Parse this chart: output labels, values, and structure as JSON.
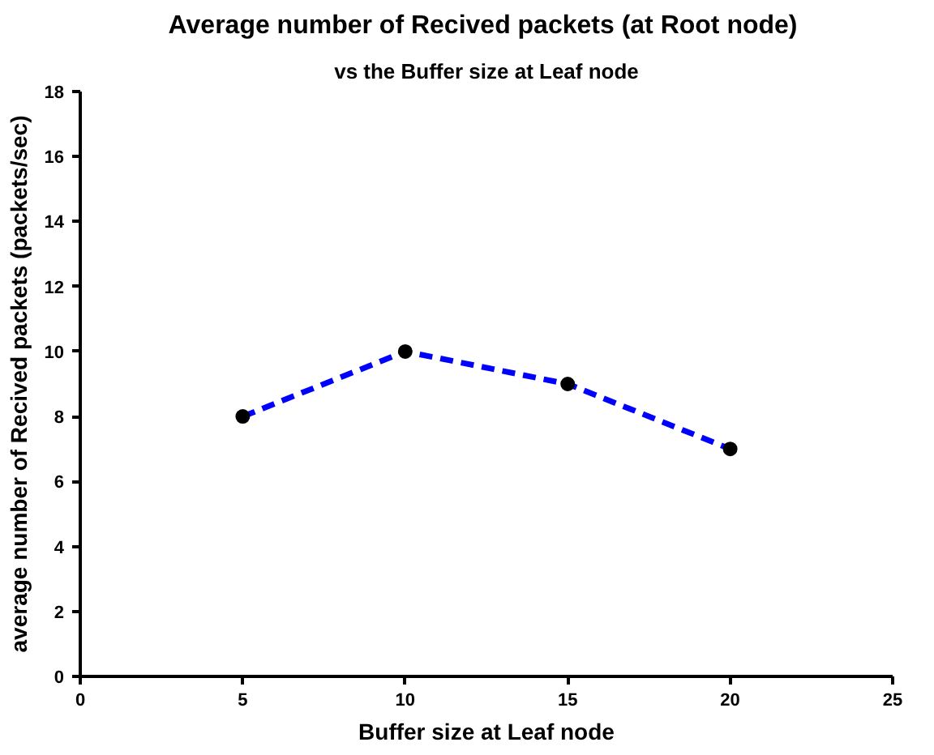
{
  "chart_data": {
    "type": "line",
    "title": "Average number of Recived packets  (at Root node)",
    "subtitle": "vs the Buffer size at Leaf node",
    "xlabel": "Buffer size at Leaf node",
    "ylabel": "average number of Recived packets (packets/sec)",
    "x": [
      5,
      10,
      15,
      20
    ],
    "series": [
      {
        "color": "#0000ff",
        "values": [
          8,
          10,
          9,
          7
        ]
      }
    ],
    "xlim": [
      0,
      25
    ],
    "xticks": [
      0,
      5,
      10,
      15,
      20,
      25
    ],
    "ylim": [
      0,
      18
    ],
    "yticks": [
      0,
      2,
      4,
      6,
      8,
      10,
      12,
      14,
      16,
      18
    ],
    "marker": "circle",
    "line_style": "dashed",
    "grid": false
  }
}
